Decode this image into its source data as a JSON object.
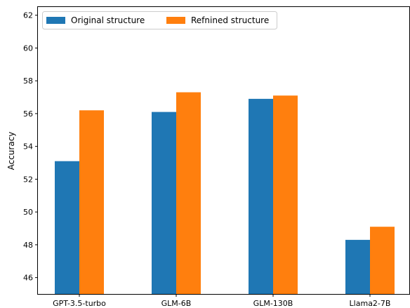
{
  "chart_data": {
    "type": "bar",
    "title": "",
    "xlabel": "",
    "ylabel": "Accuracy",
    "ylim": [
      45,
      62.5
    ],
    "yticks": [
      46,
      48,
      50,
      52,
      54,
      56,
      58,
      60,
      62
    ],
    "categories": [
      "GPT-3.5-turbo",
      "GLM-6B",
      "GLM-130B",
      "Llama2-7B"
    ],
    "series": [
      {
        "name": "Original structure",
        "color": "#1f77b4",
        "values": [
          53.1,
          56.1,
          56.9,
          48.3
        ]
      },
      {
        "name": "Refnined structure",
        "color": "#ff7f0e",
        "values": [
          56.2,
          57.3,
          57.1,
          49.1
        ]
      }
    ],
    "grid": false,
    "legend": "top-left"
  }
}
